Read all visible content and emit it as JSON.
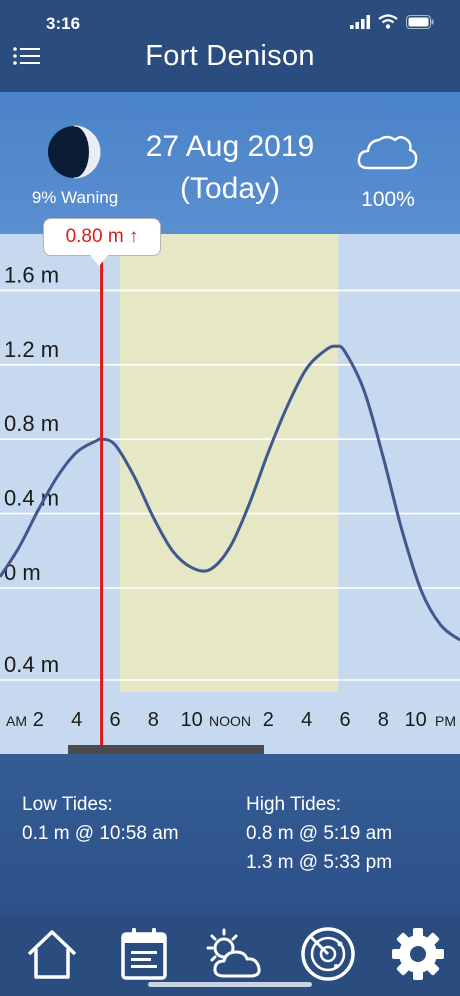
{
  "status": {
    "time": "3:16"
  },
  "nav": {
    "title": "Fort Denison"
  },
  "header": {
    "moon_label": "9% Waning",
    "date": "27 Aug 2019",
    "today": "(Today)",
    "cloud_label": "100%"
  },
  "tooltip": {
    "value": "0.80 m",
    "arrow": "↑"
  },
  "chart_data": {
    "type": "line",
    "y_tick_labels": [
      "1.6 m",
      "1.2 m",
      "0.8 m",
      "0.4 m",
      "0 m",
      "0.4 m"
    ],
    "y_tick_values": [
      1.6,
      1.2,
      0.8,
      0.4,
      0,
      -0.4
    ],
    "x_tick_labels": [
      {
        "text": "AM",
        "small": true
      },
      {
        "text": "2"
      },
      {
        "text": "4"
      },
      {
        "text": "6"
      },
      {
        "text": "8"
      },
      {
        "text": "10"
      },
      {
        "text": "NOON",
        "small": true
      },
      {
        "text": "2"
      },
      {
        "text": "4"
      },
      {
        "text": "6"
      },
      {
        "text": "8"
      },
      {
        "text": "10"
      },
      {
        "text": "PM",
        "small": true
      }
    ],
    "x_hours": [
      0,
      2,
      4,
      6,
      8,
      10,
      12,
      14,
      16,
      18,
      20,
      22,
      24
    ],
    "ylim": [
      -0.55,
      1.9
    ],
    "xlim": [
      0,
      24
    ],
    "daylight_hours": [
      6.25,
      17.65
    ],
    "cursor_hour": 5.3,
    "series": [
      {
        "x": [
          0,
          1,
          2,
          3,
          4,
          5,
          5.32,
          6,
          7,
          8,
          9,
          10,
          10.97,
          12,
          13,
          14,
          15,
          16,
          17,
          17.55,
          18,
          19,
          20,
          21,
          22,
          23,
          24
        ],
        "values": [
          0.06,
          0.22,
          0.42,
          0.6,
          0.73,
          0.79,
          0.8,
          0.77,
          0.6,
          0.38,
          0.2,
          0.11,
          0.1,
          0.22,
          0.45,
          0.73,
          0.98,
          1.18,
          1.28,
          1.3,
          1.27,
          1.06,
          0.7,
          0.3,
          -0.02,
          -0.2,
          -0.28
        ]
      }
    ]
  },
  "tides": {
    "low_title": "Low Tides:",
    "low_1": "0.1 m @ 10:58 am",
    "high_title": "High Tides:",
    "high_1": "0.8 m @ 5:19 am",
    "high_2": "1.3 m @ 5:33 pm"
  },
  "tabs": [
    "home-icon",
    "calendar-icon",
    "weather-icon",
    "radar-icon",
    "settings-icon"
  ],
  "colors": {
    "navy": "#2b4c7e",
    "curve": "#41578f",
    "cursor": "#e01818",
    "daylight": "#e5e7c5"
  }
}
